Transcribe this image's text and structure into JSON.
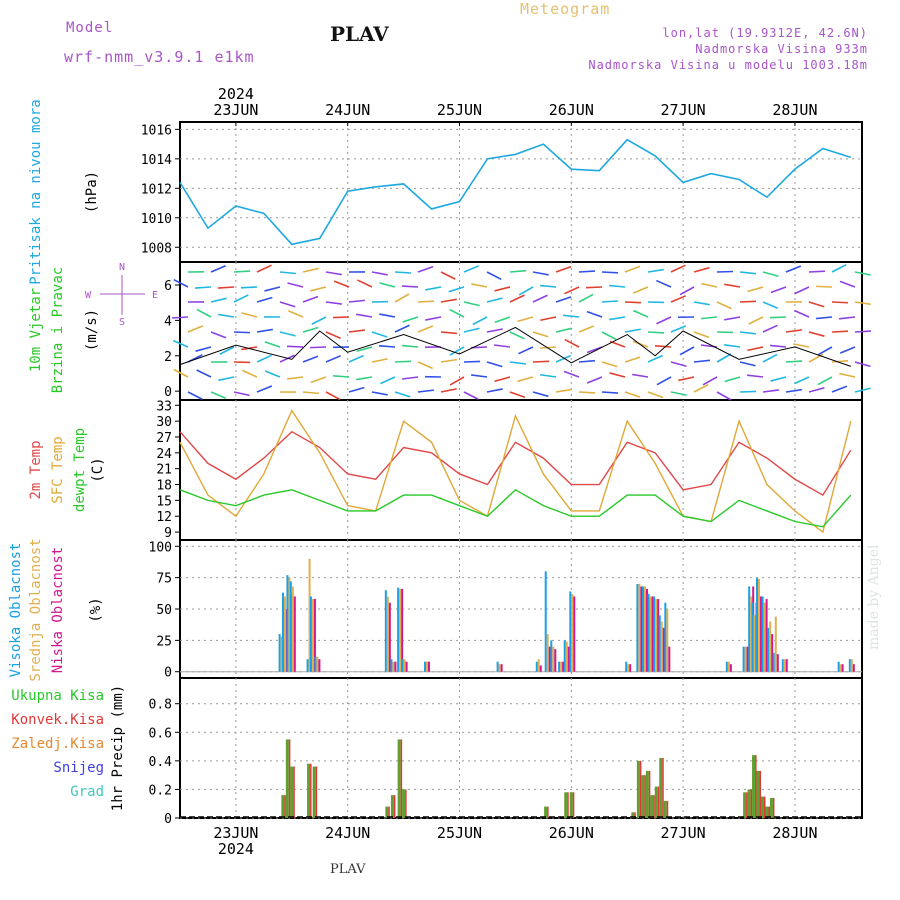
{
  "header": {
    "model_label": "Model",
    "model_name": "wrf-nmm_v3.9.1 e1km",
    "station": "PLAV",
    "title": "Meteogram",
    "coords": "lon,lat (19.9312E, 42.6N)",
    "elevation": "Nadmorska Visina 933m",
    "model_elevation": "Nadmorska Visina u modelu 1003.18m"
  },
  "footer": {
    "station": "PLAV",
    "watermark": "made by Angel"
  },
  "colors": {
    "pressure": "#1ea8e0",
    "temp2m": "#e04848",
    "sfc": "#e0a838",
    "dewpt": "#28c828",
    "high_cloud": "#18a0e8",
    "mid_cloud": "#e0b050",
    "low_cloud": "#d01890",
    "total_precip": "#60a030",
    "conv_precip": "#e03838",
    "snow": "#4040e0",
    "label_purple": "#a855c8"
  },
  "chart_data": [
    {
      "type": "line",
      "name": "pressure-panel",
      "ylabel": "Pritisak na nivou mora",
      "unit": "(hPa)",
      "ylim": [
        1007,
        1016.5
      ],
      "yticks": [
        "1008",
        "1010",
        "1012",
        "1014",
        "1016"
      ],
      "x_days": [
        0,
        0.25,
        0.5,
        0.75,
        1,
        1.25,
        1.5,
        1.75,
        2,
        2.25,
        2.5,
        2.75,
        3,
        3.25,
        3.5,
        3.75,
        4,
        4.25,
        4.5,
        4.75,
        5,
        5.25,
        5.5,
        5.75,
        6
      ],
      "series": [
        {
          "name": "",
          "values": [
            1012.4,
            1009.3,
            1010.8,
            1010.3,
            1008.2,
            1008.6,
            1011.8,
            1012.1,
            1012.3,
            1010.6,
            1011.1,
            1014.0,
            1014.3,
            1015.0,
            1013.3,
            1013.2,
            1015.3,
            1014.2,
            1012.4,
            1013.0,
            1012.6,
            1011.4,
            1013.3,
            1014.7,
            1014.1
          ]
        }
      ],
      "grid": true
    },
    {
      "type": "line",
      "name": "wind-panel",
      "ylabel": "10m Vjetar",
      "ylabel2": "Brzina i Pravac",
      "unit": "(m/s)",
      "ylim": [
        -0.5,
        7.3
      ],
      "yticks": [
        "0",
        "2",
        "4",
        "6"
      ],
      "compass": {
        "n": "N",
        "s": "S",
        "w": "W",
        "e": "E"
      },
      "x_days": [
        0,
        0.5,
        1,
        1.25,
        1.5,
        2,
        2.5,
        3,
        3.5,
        4,
        4.25,
        4.5,
        5,
        5.5,
        6
      ],
      "series": [
        {
          "name": "",
          "values": [
            1.5,
            2.6,
            1.8,
            3.4,
            2.2,
            3.2,
            2.1,
            3.6,
            1.6,
            3.2,
            2.0,
            3.4,
            1.8,
            2.5,
            1.4
          ]
        }
      ]
    },
    {
      "type": "line",
      "name": "temperature-panel",
      "ylabel": "2m Temp",
      "ylabel2": "SFC Temp",
      "ylabel3": "dewpt Temp",
      "unit": "(C)",
      "ylim": [
        7.5,
        34
      ],
      "yticks": [
        "9",
        "12",
        "15",
        "18",
        "21",
        "24",
        "27",
        "30",
        "33"
      ],
      "x_days": [
        0,
        0.25,
        0.5,
        0.75,
        1,
        1.25,
        1.5,
        1.75,
        2,
        2.25,
        2.5,
        2.75,
        3,
        3.25,
        3.5,
        3.75,
        4,
        4.25,
        4.5,
        4.75,
        5,
        5.25,
        5.5,
        5.75,
        6
      ],
      "series": [
        {
          "name": "2m Temp",
          "values": [
            28,
            22,
            19,
            23,
            28,
            25,
            20,
            19,
            25,
            24,
            20,
            18,
            26,
            23,
            18,
            18,
            26,
            24,
            17,
            18,
            26,
            23,
            19,
            16,
            24.5
          ]
        },
        {
          "name": "SFC Temp",
          "values": [
            26,
            16,
            12,
            20,
            32,
            24,
            14,
            13,
            30,
            26,
            15,
            12,
            31,
            20,
            13,
            13,
            30,
            22,
            12,
            11,
            30,
            18,
            13,
            9,
            30
          ]
        },
        {
          "name": "dewpt Temp",
          "values": [
            17,
            15,
            14,
            16,
            17,
            15,
            13,
            13,
            16,
            16,
            14,
            12,
            17,
            14,
            12,
            12,
            16,
            16,
            12,
            11,
            15,
            13,
            11,
            10,
            16
          ]
        }
      ]
    },
    {
      "type": "bar",
      "name": "cloud-panel",
      "ylabel": "Visoka Oblacnost",
      "ylabel2": "Srednja Oblacnost",
      "ylabel3": "Niska Oblacnost",
      "unit": "(%)",
      "ylim": [
        -5,
        105
      ],
      "yticks": [
        "0",
        "25",
        "50",
        "75",
        "100"
      ],
      "bars": [
        {
          "x": 0.9,
          "high": 30,
          "mid": 28,
          "low": 25
        },
        {
          "x": 0.93,
          "high": 63,
          "mid": 60,
          "low": 50
        },
        {
          "x": 0.97,
          "high": 77,
          "mid": 75,
          "low": 62
        },
        {
          "x": 1.0,
          "high": 72,
          "mid": 68,
          "low": 60
        },
        {
          "x": 1.15,
          "high": 10,
          "mid": 90,
          "low": 10
        },
        {
          "x": 1.18,
          "high": 60,
          "mid": 58,
          "low": 58
        },
        {
          "x": 1.22,
          "high": 12,
          "mid": 12,
          "low": 10
        },
        {
          "x": 1.85,
          "high": 65,
          "mid": 60,
          "low": 55
        },
        {
          "x": 1.9,
          "high": 10,
          "mid": 8,
          "low": 8
        },
        {
          "x": 1.96,
          "high": 67,
          "mid": 66,
          "low": 66
        },
        {
          "x": 2.0,
          "high": 10,
          "mid": 10,
          "low": 8
        },
        {
          "x": 2.2,
          "high": 8,
          "mid": 8,
          "low": 8
        },
        {
          "x": 2.85,
          "high": 8,
          "mid": 6,
          "low": 6
        },
        {
          "x": 3.2,
          "high": 8,
          "mid": 10,
          "low": 5
        },
        {
          "x": 3.28,
          "high": 80,
          "mid": 30,
          "low": 20
        },
        {
          "x": 3.33,
          "high": 25,
          "mid": 20,
          "low": 18
        },
        {
          "x": 3.4,
          "high": 8,
          "mid": 8,
          "low": 8
        },
        {
          "x": 3.45,
          "high": 25,
          "mid": 24,
          "low": 20
        },
        {
          "x": 3.5,
          "high": 64,
          "mid": 62,
          "low": 60
        },
        {
          "x": 4.0,
          "high": 8,
          "mid": 6,
          "low": 6
        },
        {
          "x": 4.1,
          "high": 70,
          "mid": 70,
          "low": 68
        },
        {
          "x": 4.15,
          "high": 68,
          "mid": 68,
          "low": 66
        },
        {
          "x": 4.2,
          "high": 62,
          "mid": 60,
          "low": 60
        },
        {
          "x": 4.25,
          "high": 60,
          "mid": 58,
          "low": 58
        },
        {
          "x": 4.3,
          "high": 45,
          "mid": 40,
          "low": 35
        },
        {
          "x": 4.35,
          "high": 55,
          "mid": 50,
          "low": 20
        },
        {
          "x": 4.9,
          "high": 8,
          "mid": 8,
          "low": 6
        },
        {
          "x": 5.05,
          "high": 20,
          "mid": 20,
          "low": 20
        },
        {
          "x": 5.1,
          "high": 68,
          "mid": 60,
          "low": 68
        },
        {
          "x": 5.13,
          "high": 55,
          "mid": 45,
          "low": 55
        },
        {
          "x": 5.17,
          "high": 75,
          "mid": 74,
          "low": 60
        },
        {
          "x": 5.22,
          "high": 60,
          "mid": 55,
          "low": 58
        },
        {
          "x": 5.27,
          "high": 35,
          "mid": 40,
          "low": 30
        },
        {
          "x": 5.32,
          "high": 15,
          "mid": 44,
          "low": 14
        },
        {
          "x": 5.4,
          "high": 10,
          "mid": 10,
          "low": 10
        },
        {
          "x": 5.9,
          "high": 8,
          "mid": 6,
          "low": 6
        },
        {
          "x": 6.0,
          "high": 10,
          "mid": 10,
          "low": 6
        }
      ],
      "grid": true
    },
    {
      "type": "bar",
      "name": "precip-panel",
      "legend": [
        "Ukupna Kisa",
        "Konvek.Kisa",
        "Zaledj.Kisa",
        "Snijeg",
        "Grad"
      ],
      "ylabel": "1hr Precip (mm)",
      "ylim": [
        0,
        0.98
      ],
      "yticks": [
        "0",
        "0.2",
        "0.4",
        "0.6",
        "0.8"
      ],
      "bars": [
        {
          "x": 0.92,
          "total": 0.16,
          "conv": 0.16
        },
        {
          "x": 0.96,
          "total": 0.55,
          "conv": 0.55
        },
        {
          "x": 1.0,
          "total": 0.36,
          "conv": 0.36
        },
        {
          "x": 1.15,
          "total": 0.38,
          "conv": 0.38
        },
        {
          "x": 1.2,
          "total": 0.36,
          "conv": 0.36
        },
        {
          "x": 1.85,
          "total": 0.08,
          "conv": 0.08
        },
        {
          "x": 1.9,
          "total": 0.16,
          "conv": 0.16
        },
        {
          "x": 1.96,
          "total": 0.55,
          "conv": 0.55
        },
        {
          "x": 2.0,
          "total": 0.2,
          "conv": 0.2
        },
        {
          "x": 3.27,
          "total": 0.08,
          "conv": 0.08
        },
        {
          "x": 3.45,
          "total": 0.18,
          "conv": 0.18
        },
        {
          "x": 3.5,
          "total": 0.18,
          "conv": 0.18
        },
        {
          "x": 4.05,
          "total": 0.04,
          "conv": 0.04
        },
        {
          "x": 4.1,
          "total": 0.4,
          "conv": 0.4
        },
        {
          "x": 4.14,
          "total": 0.3,
          "conv": 0.3
        },
        {
          "x": 4.18,
          "total": 0.33,
          "conv": 0.33
        },
        {
          "x": 4.22,
          "total": 0.16,
          "conv": 0.16
        },
        {
          "x": 4.26,
          "total": 0.22,
          "conv": 0.22
        },
        {
          "x": 4.3,
          "total": 0.42,
          "conv": 0.42
        },
        {
          "x": 4.34,
          "total": 0.12,
          "conv": 0.12
        },
        {
          "x": 5.05,
          "total": 0.18,
          "conv": 0.18
        },
        {
          "x": 5.09,
          "total": 0.2,
          "conv": 0.2
        },
        {
          "x": 5.13,
          "total": 0.44,
          "conv": 0.44
        },
        {
          "x": 5.17,
          "total": 0.33,
          "conv": 0.33
        },
        {
          "x": 5.21,
          "total": 0.15,
          "conv": 0.15
        },
        {
          "x": 5.25,
          "total": 0.08,
          "conv": 0.08
        },
        {
          "x": 5.29,
          "total": 0.14,
          "conv": 0.14
        }
      ],
      "grid": true
    }
  ],
  "time_axis": {
    "year": "2024",
    "days": [
      "23JUN",
      "24JUN",
      "25JUN",
      "26JUN",
      "27JUN",
      "28JUN"
    ],
    "day_offsets": [
      0.5,
      1.5,
      2.5,
      3.5,
      4.5,
      5.5
    ]
  }
}
